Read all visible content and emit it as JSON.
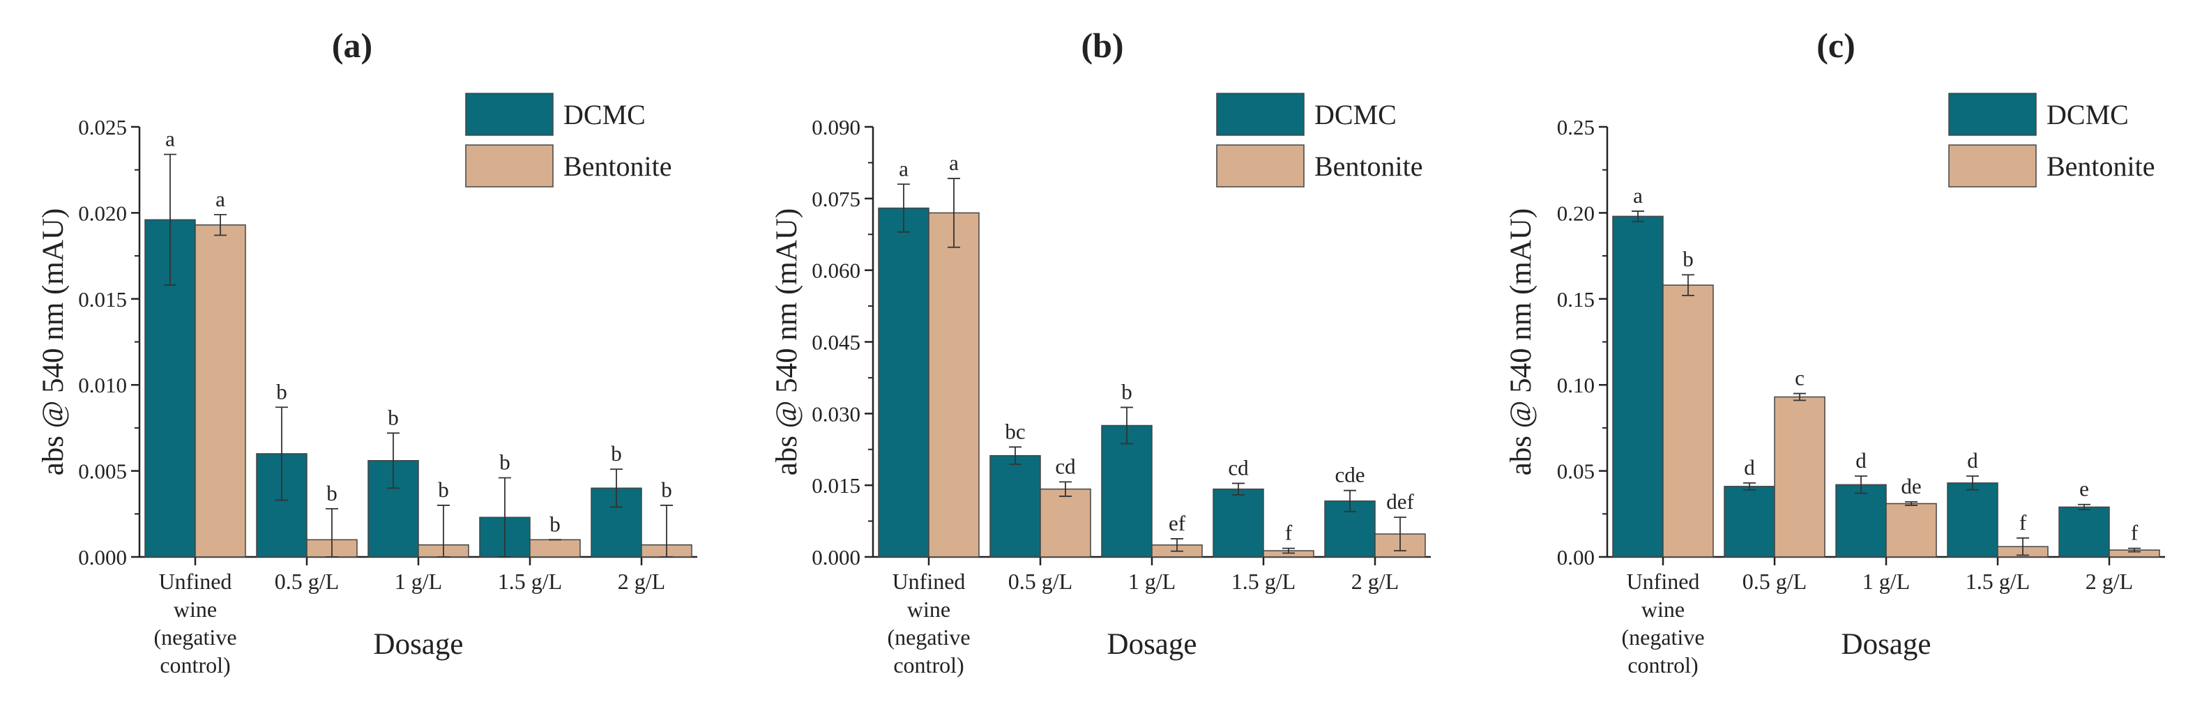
{
  "chart_data": [
    {
      "type": "bar",
      "title": "(a)",
      "xlabel": "Dosage",
      "ylabel": "abs @ 540 nm (mAU)",
      "categories": [
        [
          "Unfined",
          "wine",
          "(negative",
          "control)"
        ],
        [
          "0.5 g/L"
        ],
        [
          "1 g/L"
        ],
        [
          "1.5 g/L"
        ],
        [
          "2 g/L"
        ]
      ],
      "ylim": [
        0,
        0.025
      ],
      "yticks": [
        "0.000",
        "0.005",
        "0.010",
        "0.015",
        "0.020",
        "0.025"
      ],
      "yticks_values": [
        0,
        0.005,
        0.01,
        0.015,
        0.02,
        0.025
      ],
      "legend": {
        "position": "top-right",
        "entries": [
          "DCMC",
          "Bentonite"
        ]
      },
      "series": [
        {
          "name": "DCMC",
          "values": [
            0.0196,
            0.006,
            0.0056,
            0.0023,
            0.004
          ],
          "errors": [
            0.0038,
            0.0027,
            0.0016,
            0.0023,
            0.0011
          ],
          "labels": [
            "a",
            "b",
            "b",
            "b",
            "b"
          ]
        },
        {
          "name": "Bentonite",
          "values": [
            0.0193,
            0.001,
            0.0007,
            0.001,
            0.0007
          ],
          "errors": [
            0.0006,
            0.0018,
            0.0023,
            0.0,
            0.0023
          ],
          "labels": [
            "a",
            "b",
            "b",
            "b",
            "b"
          ]
        }
      ]
    },
    {
      "type": "bar",
      "title": "(b)",
      "xlabel": "Dosage",
      "ylabel": "abs @ 540 nm (mAU)",
      "categories": [
        [
          "Unfined",
          "wine",
          "(negative",
          "control)"
        ],
        [
          "0.5 g/L"
        ],
        [
          "1 g/L"
        ],
        [
          "1.5 g/L"
        ],
        [
          "2 g/L"
        ]
      ],
      "ylim": [
        0,
        0.09
      ],
      "yticks": [
        "0.000",
        "0.015",
        "0.030",
        "0.045",
        "0.060",
        "0.075",
        "0.090"
      ],
      "yticks_values": [
        0,
        0.015,
        0.03,
        0.045,
        0.06,
        0.075,
        0.09
      ],
      "legend": {
        "position": "top-right",
        "entries": [
          "DCMC",
          "Bentonite"
        ]
      },
      "series": [
        {
          "name": "DCMC",
          "values": [
            0.073,
            0.0212,
            0.0275,
            0.0142,
            0.0117
          ],
          "errors": [
            0.005,
            0.0018,
            0.0038,
            0.0012,
            0.0022
          ],
          "labels": [
            "a",
            "bc",
            "b",
            "cd",
            "cde"
          ]
        },
        {
          "name": "Bentonite",
          "values": [
            0.072,
            0.0142,
            0.0025,
            0.0013,
            0.0048
          ],
          "errors": [
            0.0072,
            0.0015,
            0.0013,
            0.0005,
            0.0035
          ],
          "labels": [
            "a",
            "cd",
            "ef",
            "f",
            "def"
          ]
        }
      ]
    },
    {
      "type": "bar",
      "title": "(c)",
      "xlabel": "Dosage",
      "ylabel": "abs @ 540 nm (mAU)",
      "categories": [
        [
          "Unfined",
          "wine",
          "(negative",
          "control)"
        ],
        [
          "0.5 g/L"
        ],
        [
          "1 g/L"
        ],
        [
          "1.5 g/L"
        ],
        [
          "2 g/L"
        ]
      ],
      "ylim": [
        0,
        0.25
      ],
      "yticks": [
        "0.00",
        "0.05",
        "0.10",
        "0.15",
        "0.20",
        "0.25"
      ],
      "yticks_values": [
        0,
        0.05,
        0.1,
        0.15,
        0.2,
        0.25
      ],
      "legend": {
        "position": "top-right",
        "entries": [
          "DCMC",
          "Bentonite"
        ]
      },
      "series": [
        {
          "name": "DCMC",
          "values": [
            0.198,
            0.041,
            0.042,
            0.043,
            0.029
          ],
          "errors": [
            0.003,
            0.002,
            0.005,
            0.004,
            0.0015
          ],
          "labels": [
            "a",
            "d",
            "d",
            "d",
            "e"
          ]
        },
        {
          "name": "Bentonite",
          "values": [
            0.158,
            0.093,
            0.031,
            0.006,
            0.004
          ],
          "errors": [
            0.006,
            0.002,
            0.001,
            0.005,
            0.001
          ],
          "labels": [
            "b",
            "c",
            "de",
            "f",
            "f"
          ]
        }
      ]
    }
  ],
  "colors": {
    "dcmc": "#0b6b7a",
    "bentonite": "#d7ae8e",
    "axis": "#222222",
    "errorbar": "#333333"
  }
}
